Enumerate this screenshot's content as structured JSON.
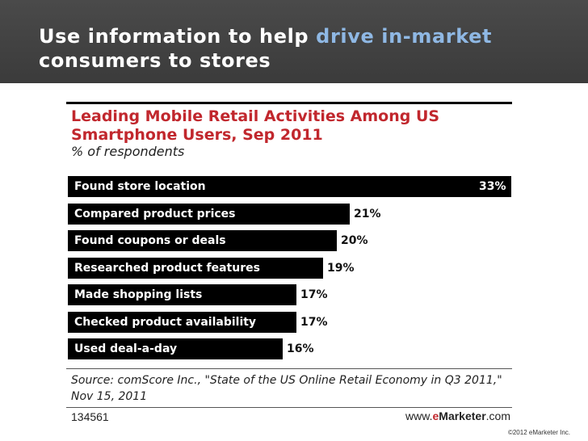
{
  "slide": {
    "title_part1": "Use information to help ",
    "title_highlight": "drive in-market",
    "title_part2": "consumers to stores",
    "copyright": "©2012 eMarketer Inc."
  },
  "chart_data": {
    "type": "bar",
    "orientation": "horizontal",
    "title": "Leading Mobile Retail Activities Among US Smartphone Users, Sep 2011",
    "subtitle": "% of respondents",
    "categories": [
      "Found store location",
      "Compared product prices",
      "Found coupons or deals",
      "Researched product features",
      "Made shopping lists",
      "Checked product availability",
      "Used deal-a-day"
    ],
    "values": [
      33,
      21,
      20,
      19,
      17,
      17,
      16
    ],
    "value_labels": [
      "33%",
      "21%",
      "20%",
      "19%",
      "17%",
      "17%",
      "16%"
    ],
    "xlim": [
      0,
      33
    ],
    "source": "Source: comScore Inc., \"State of the US Online Retail Economy in Q3 2011,\" Nov 15, 2011",
    "chart_id": "134561",
    "brand": {
      "prefix": "www.",
      "e": "e",
      "marketer": "Marketer",
      "suffix": ".com"
    }
  },
  "colors": {
    "header_bg": "#3f3f3f",
    "header_highlight": "#8fb8e4",
    "chart_title": "#c1272d",
    "bar": "#000000"
  }
}
